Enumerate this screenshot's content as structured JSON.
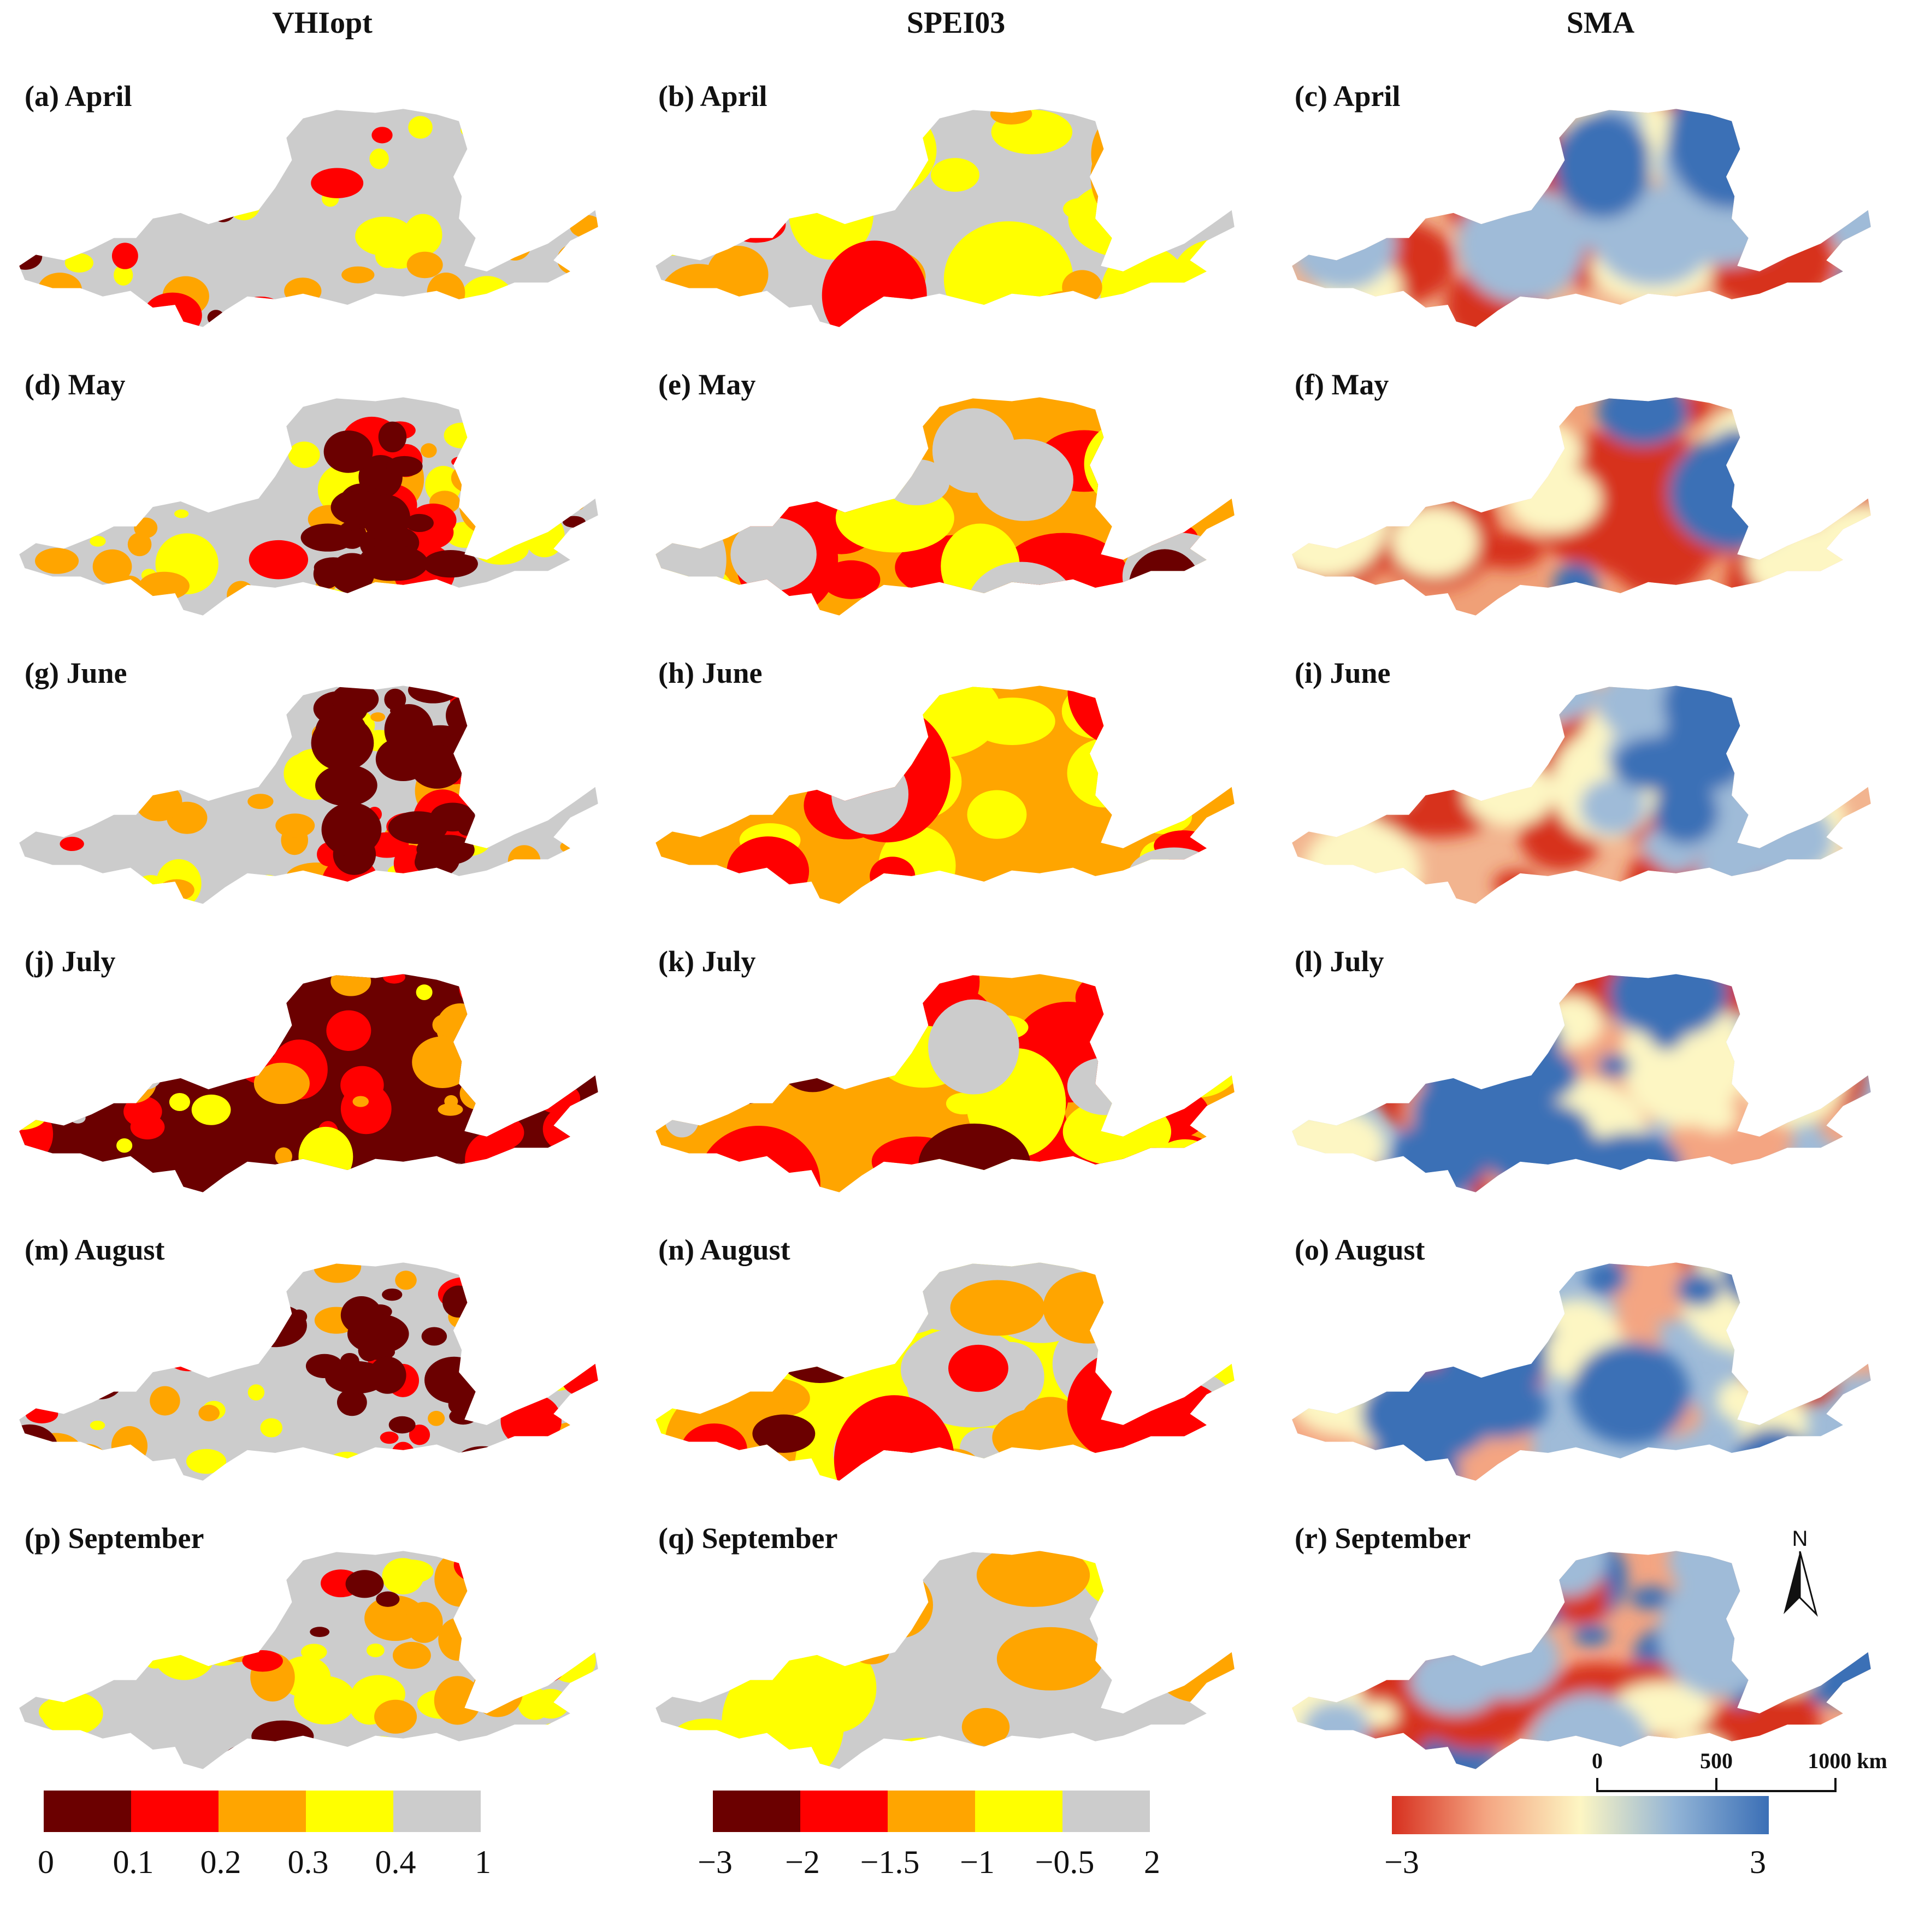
{
  "columns": [
    {
      "key": "vhi",
      "title": "VHIopt"
    },
    {
      "key": "spei",
      "title": "SPEI03"
    },
    {
      "key": "sma",
      "title": "SMA"
    }
  ],
  "panels": [
    {
      "label": "(a)  April",
      "col": "vhi",
      "row": 0,
      "pattern": "vhi_light"
    },
    {
      "label": "(b)  April",
      "col": "spei",
      "row": 0,
      "pattern": "spei_april"
    },
    {
      "label": "(c)  April",
      "col": "sma",
      "row": 0,
      "pattern": "sma_dry_ne"
    },
    {
      "label": "(d)  May",
      "col": "vhi",
      "row": 1,
      "pattern": "vhi_east"
    },
    {
      "label": "(e)  May",
      "col": "spei",
      "row": 1,
      "pattern": "spei_may"
    },
    {
      "label": "(f)   May",
      "col": "sma",
      "row": 1,
      "pattern": "sma_dry_most"
    },
    {
      "label": "(g)  June",
      "col": "vhi",
      "row": 2,
      "pattern": "vhi_east"
    },
    {
      "label": "(h)  June",
      "col": "spei",
      "row": 2,
      "pattern": "spei_june"
    },
    {
      "label": "(i)   June",
      "col": "sma",
      "row": 2,
      "pattern": "sma_dry_ne"
    },
    {
      "label": "(j)  July",
      "col": "vhi",
      "row": 3,
      "pattern": "vhi_heavy"
    },
    {
      "label": "(k)  July",
      "col": "spei",
      "row": 3,
      "pattern": "spei_july"
    },
    {
      "label": "(l)   July",
      "col": "sma",
      "row": 3,
      "pattern": "sma_mixed"
    },
    {
      "label": "(m)  August",
      "col": "vhi",
      "row": 4,
      "pattern": "vhi_east"
    },
    {
      "label": "(n)  August",
      "col": "spei",
      "row": 4,
      "pattern": "spei_aug"
    },
    {
      "label": "(o)  August",
      "col": "sma",
      "row": 4,
      "pattern": "sma_mixed"
    },
    {
      "label": "(p)  September",
      "col": "vhi",
      "row": 5,
      "pattern": "vhi_light"
    },
    {
      "label": "(q)  September",
      "col": "spei",
      "row": 5,
      "pattern": "spei_sep"
    },
    {
      "label": "(r)  September",
      "col": "sma",
      "row": 5,
      "pattern": "sma_wet_center"
    }
  ],
  "legends": {
    "vhi": {
      "colors": [
        "#6b0000",
        "#ff0000",
        "#ffa500",
        "#ffff00",
        "#cccccc"
      ],
      "ticks": [
        "0",
        "0.1",
        "0.2",
        "0.3",
        "0.4",
        "1"
      ]
    },
    "spei": {
      "colors": [
        "#6b0000",
        "#ff0000",
        "#ffa500",
        "#ffff00",
        "#cccccc"
      ],
      "ticks": [
        "−3",
        "−2",
        "−1.5",
        "−1",
        "−0.5",
        "2"
      ]
    },
    "sma": {
      "gradient": [
        "#d7301f",
        "#f4a582",
        "#fdf6c3",
        "#92b4d6",
        "#3b6fb6"
      ],
      "ticks": [
        "−3",
        "3"
      ]
    }
  },
  "north_arrow": {
    "label": "N"
  },
  "scale_bar": {
    "labels": [
      "0",
      "500",
      "1000 km"
    ]
  },
  "colors": {
    "nodata": "#cccccc",
    "dark_red": "#6b0000",
    "red": "#ff0000",
    "orange": "#ffa500",
    "yellow": "#ffff00",
    "sma_dry": "#d7301f",
    "sma_mid": "#fdf6c3",
    "sma_wet": "#3b6fb6"
  }
}
